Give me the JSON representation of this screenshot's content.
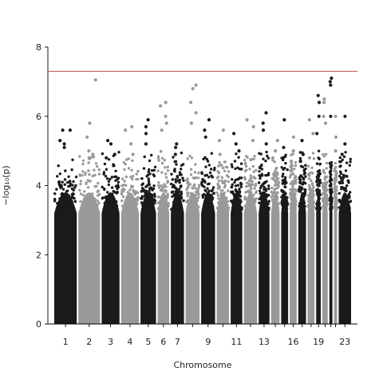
{
  "chart_data": {
    "type": "scatter",
    "subtype": "manhattan",
    "title": "",
    "xlabel": "Chromosome",
    "ylabel": "−log₁₀(p)",
    "ylim": [
      0,
      8
    ],
    "yticks": [
      0,
      2,
      4,
      6,
      8
    ],
    "grid": false,
    "legend": "none",
    "significance_line": {
      "y": 7.3,
      "color": "#c0504d"
    },
    "series_colors": [
      "#1a1a1a",
      "#999999"
    ],
    "chromosomes": [
      {
        "chrom": 1,
        "label": "1",
        "peak_points": [
          5.6,
          5.6,
          5.3,
          5.2,
          5.1
        ]
      },
      {
        "chrom": 2,
        "label": "2",
        "peak_points": [
          5.8,
          5.4,
          5.0,
          4.9,
          4.8
        ]
      },
      {
        "chrom": 3,
        "label": "3",
        "peak_points": [
          5.3,
          5.2,
          4.9,
          4.8
        ]
      },
      {
        "chrom": 4,
        "label": "4",
        "peak_points": [
          5.7,
          5.6,
          5.2,
          4.9
        ]
      },
      {
        "chrom": 5,
        "label": "5",
        "peak_points": [
          5.9,
          5.7,
          5.5,
          5.2
        ]
      },
      {
        "chrom": 6,
        "label": "6",
        "peak_points": [
          6.4,
          6.3,
          6.0,
          5.8,
          5.6
        ]
      },
      {
        "chrom": 7,
        "label": "7",
        "peak_points": [
          5.2,
          5.1,
          4.9
        ]
      },
      {
        "chrom": 8,
        "label": "",
        "peak_points": [
          6.9,
          6.8,
          6.4,
          6.1,
          5.8
        ]
      },
      {
        "chrom": 9,
        "label": "9",
        "peak_points": [
          5.9,
          5.6,
          5.4
        ]
      },
      {
        "chrom": 10,
        "label": "",
        "peak_points": [
          5.6,
          5.3,
          4.9
        ]
      },
      {
        "chrom": 11,
        "label": "11",
        "peak_points": [
          5.5,
          5.2,
          5.0
        ]
      },
      {
        "chrom": 12,
        "label": "",
        "peak_points": [
          5.9,
          5.7,
          5.3
        ]
      },
      {
        "chrom": 13,
        "label": "13",
        "peak_points": [
          6.1,
          5.8,
          5.6,
          5.2
        ]
      },
      {
        "chrom": 14,
        "label": "",
        "peak_points": [
          5.3,
          5.0,
          4.8
        ]
      },
      {
        "chrom": 15,
        "label": "",
        "peak_points": [
          5.9,
          5.1,
          4.8
        ]
      },
      {
        "chrom": 16,
        "label": "16",
        "peak_points": [
          5.4,
          5.0,
          4.7
        ]
      },
      {
        "chrom": 17,
        "label": "",
        "peak_points": [
          5.3,
          4.9,
          4.7
        ]
      },
      {
        "chrom": 18,
        "label": "",
        "peak_points": [
          5.9,
          5.5,
          4.8
        ]
      },
      {
        "chrom": 19,
        "label": "19",
        "peak_points": [
          6.6,
          6.4,
          6.0,
          5.5
        ]
      },
      {
        "chrom": 20,
        "label": "",
        "peak_points": [
          6.5,
          6.4,
          6.0,
          5.8
        ]
      },
      {
        "chrom": 21,
        "label": "",
        "peak_points": [
          7.1,
          7.0,
          6.9,
          6.0
        ]
      },
      {
        "chrom": 22,
        "label": "",
        "peak_points": [
          6.0,
          5.4,
          5.0
        ]
      },
      {
        "chrom": 23,
        "label": "23",
        "peak_points": [
          6.0,
          5.2,
          4.9
        ]
      }
    ],
    "isolated_points": [
      {
        "chrom": 2,
        "y": 7.05
      }
    ]
  }
}
